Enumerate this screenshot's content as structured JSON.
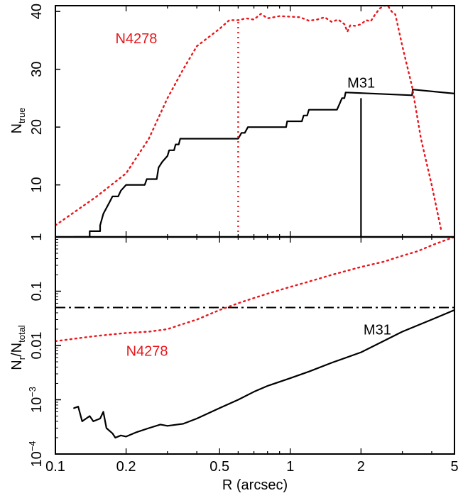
{
  "chart_data": [
    {
      "type": "line",
      "panel": "top",
      "ylabel": "N",
      "ylabel_sub": "true",
      "xscale": "log",
      "xlim": [
        0.1,
        5
      ],
      "ylim": [
        1,
        41
      ],
      "y_ticks": [
        10,
        20,
        30,
        40
      ],
      "y_tick_labels": [
        "10",
        "20",
        "30",
        "40"
      ],
      "bottom_label": "1",
      "series": [
        {
          "name": "M31",
          "color": "#000000",
          "style": "solid",
          "points": [
            [
              0.12,
              1
            ],
            [
              0.14,
              1
            ],
            [
              0.14,
              2
            ],
            [
              0.155,
              2
            ],
            [
              0.155,
              3
            ],
            [
              0.16,
              5
            ],
            [
              0.17,
              7
            ],
            [
              0.175,
              8
            ],
            [
              0.185,
              8
            ],
            [
              0.19,
              9
            ],
            [
              0.2,
              10
            ],
            [
              0.24,
              10
            ],
            [
              0.245,
              11
            ],
            [
              0.27,
              11
            ],
            [
              0.275,
              13
            ],
            [
              0.285,
              14
            ],
            [
              0.3,
              15
            ],
            [
              0.305,
              16
            ],
            [
              0.32,
              16
            ],
            [
              0.325,
              17
            ],
            [
              0.335,
              17
            ],
            [
              0.34,
              18
            ],
            [
              0.6,
              18
            ],
            [
              0.62,
              19
            ],
            [
              0.64,
              19
            ],
            [
              0.66,
              20
            ],
            [
              0.96,
              20
            ],
            [
              0.97,
              21
            ],
            [
              1.12,
              21
            ],
            [
              1.14,
              22
            ],
            [
              1.18,
              22
            ],
            [
              1.2,
              23
            ],
            [
              1.58,
              23
            ],
            [
              1.62,
              24
            ],
            [
              1.66,
              25
            ],
            [
              1.7,
              25
            ],
            [
              1.72,
              26
            ],
            [
              3.3,
              25.5
            ],
            [
              3.32,
              26.5
            ],
            [
              5,
              25.8
            ]
          ]
        },
        {
          "name": "N4278",
          "color": "#e8161b",
          "style": "dotted",
          "points": [
            [
              0.1,
              3
            ],
            [
              0.15,
              8
            ],
            [
              0.2,
              12
            ],
            [
              0.25,
              18
            ],
            [
              0.3,
              25
            ],
            [
              0.35,
              30
            ],
            [
              0.4,
              34
            ],
            [
              0.5,
              37
            ],
            [
              0.55,
              38.5
            ],
            [
              0.6,
              38.5
            ],
            [
              0.65,
              38.8
            ],
            [
              0.7,
              38.6
            ],
            [
              0.75,
              39.6
            ],
            [
              0.8,
              38.8
            ],
            [
              0.9,
              39.2
            ],
            [
              1.0,
              39.1
            ],
            [
              1.1,
              39
            ],
            [
              1.2,
              38.4
            ],
            [
              1.3,
              38.6
            ],
            [
              1.4,
              39
            ],
            [
              1.5,
              38.2
            ],
            [
              1.6,
              38.6
            ],
            [
              1.7,
              37.8
            ],
            [
              1.75,
              36.5
            ],
            [
              1.8,
              37.6
            ],
            [
              1.9,
              37.5
            ],
            [
              2.0,
              37.8
            ],
            [
              2.1,
              38.5
            ],
            [
              2.2,
              38.3
            ],
            [
              2.3,
              39.5
            ],
            [
              2.4,
              40.5
            ],
            [
              2.5,
              41
            ],
            [
              2.6,
              41
            ],
            [
              2.7,
              40
            ],
            [
              2.8,
              39.5
            ],
            [
              3.0,
              34
            ],
            [
              3.3,
              27
            ],
            [
              3.6,
              18
            ],
            [
              4.0,
              10
            ],
            [
              4.4,
              2
            ]
          ]
        }
      ],
      "vertical_lines": [
        {
          "x": 0.6,
          "y": [
            1,
            38.5
          ],
          "color": "#e8161b",
          "style": "dotted"
        },
        {
          "x": 2.0,
          "y": [
            1,
            25
          ],
          "color": "#000000",
          "style": "solid"
        }
      ],
      "annotations": [
        {
          "text": "N4278",
          "x": 0.18,
          "y": 34.5,
          "color": "#e8161b"
        },
        {
          "text": "M31",
          "x": 1.75,
          "y": 26.8,
          "color": "#000000"
        }
      ]
    },
    {
      "type": "line",
      "panel": "bottom",
      "ylabel": "N",
      "ylabel_sub": "r",
      "ylabel_sep": "/N",
      "ylabel_sub2": "total",
      "xscale": "log",
      "yscale": "log",
      "xlim": [
        0.1,
        5
      ],
      "ylim": [
        0.0001,
        1
      ],
      "x_ticks": [
        0.1,
        0.2,
        0.5,
        1,
        2,
        5
      ],
      "x_tick_labels": [
        "0.1",
        "0.2",
        "0.5",
        "1",
        "2",
        "5"
      ],
      "y_tick_labels": [
        {
          "value": 0.0001,
          "base": "10",
          "exp": "−4"
        },
        {
          "value": 0.001,
          "base": "10",
          "exp": "−3"
        },
        {
          "value": 0.01,
          "text": "0.01"
        },
        {
          "value": 0.1,
          "text": "0.1"
        }
      ],
      "xlabel": "R (arcsec)",
      "series": [
        {
          "name": "M31",
          "color": "#000000",
          "style": "solid",
          "points": [
            [
              0.12,
              0.0007
            ],
            [
              0.125,
              0.00075
            ],
            [
              0.13,
              0.0004
            ],
            [
              0.14,
              0.0005
            ],
            [
              0.145,
              0.0004
            ],
            [
              0.155,
              0.00045
            ],
            [
              0.16,
              0.0006
            ],
            [
              0.165,
              0.0003
            ],
            [
              0.175,
              0.00024
            ],
            [
              0.18,
              0.0002
            ],
            [
              0.19,
              0.00022
            ],
            [
              0.2,
              0.00021
            ],
            [
              0.22,
              0.00025
            ],
            [
              0.25,
              0.0003
            ],
            [
              0.28,
              0.00035
            ],
            [
              0.3,
              0.00033
            ],
            [
              0.35,
              0.00036
            ],
            [
              0.4,
              0.00045
            ],
            [
              0.5,
              0.0007
            ],
            [
              0.6,
              0.001
            ],
            [
              0.7,
              0.0014
            ],
            [
              0.8,
              0.0018
            ],
            [
              1.0,
              0.0025
            ],
            [
              1.2,
              0.0033
            ],
            [
              1.5,
              0.0048
            ],
            [
              2.0,
              0.0075
            ],
            [
              3.0,
              0.018
            ],
            [
              4.0,
              0.03
            ],
            [
              5.0,
              0.045
            ]
          ]
        },
        {
          "name": "N4278",
          "color": "#e8161b",
          "style": "dotted",
          "points": [
            [
              0.1,
              0.012
            ],
            [
              0.15,
              0.015
            ],
            [
              0.2,
              0.017
            ],
            [
              0.25,
              0.018
            ],
            [
              0.3,
              0.02
            ],
            [
              0.35,
              0.025
            ],
            [
              0.4,
              0.03
            ],
            [
              0.5,
              0.045
            ],
            [
              0.6,
              0.06
            ],
            [
              0.7,
              0.075
            ],
            [
              0.8,
              0.09
            ],
            [
              1.0,
              0.12
            ],
            [
              1.2,
              0.15
            ],
            [
              1.5,
              0.2
            ],
            [
              2.0,
              0.28
            ],
            [
              2.5,
              0.35
            ],
            [
              3.0,
              0.45
            ],
            [
              3.5,
              0.55
            ],
            [
              4.0,
              0.7
            ],
            [
              4.5,
              0.85
            ],
            [
              5.0,
              1.0
            ]
          ]
        }
      ],
      "hlines": [
        {
          "y": 0.05,
          "color": "#000000",
          "style": "dashdot"
        }
      ],
      "annotations": [
        {
          "text": "N4278",
          "x": 0.2,
          "y": 0.0065,
          "color": "#e8161b"
        },
        {
          "text": "M31",
          "x": 2.05,
          "y": 0.016,
          "color": "#000000"
        }
      ]
    }
  ]
}
